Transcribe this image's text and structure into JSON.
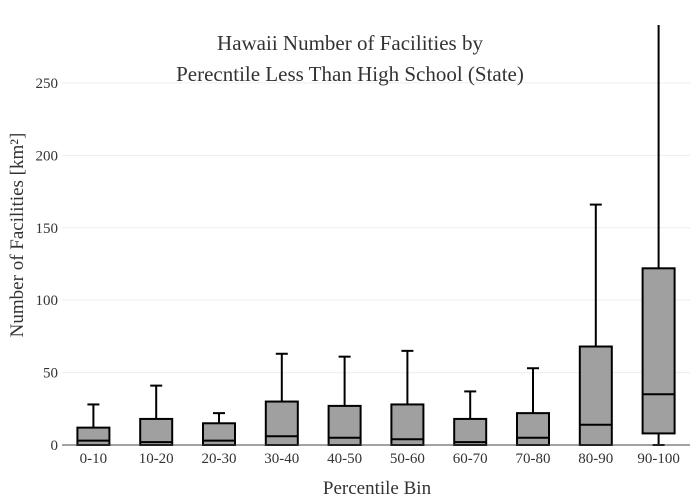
{
  "chart_data": {
    "type": "box",
    "title_line1": "Hawaii Number of Facilities by",
    "title_line2": "Perecntile Less Than High School (State)",
    "xlabel": "Percentile Bin",
    "ylabel": "Number of Facilities  [km²]",
    "ylim": [
      0,
      290
    ],
    "yticks": [
      0,
      50,
      100,
      150,
      200,
      250
    ],
    "grid": true,
    "categories": [
      "0-10",
      "10-20",
      "20-30",
      "30-40",
      "40-50",
      "50-60",
      "60-70",
      "70-80",
      "80-90",
      "90-100"
    ],
    "boxes": [
      {
        "min": 0,
        "q1": 0,
        "median": 3,
        "q3": 12,
        "max": 28
      },
      {
        "min": 0,
        "q1": 0,
        "median": 2,
        "q3": 18,
        "max": 41
      },
      {
        "min": 0,
        "q1": 0,
        "median": 3,
        "q3": 15,
        "max": 22
      },
      {
        "min": 0,
        "q1": 0,
        "median": 6,
        "q3": 30,
        "max": 63
      },
      {
        "min": 0,
        "q1": 0,
        "median": 5,
        "q3": 27,
        "max": 61
      },
      {
        "min": 0,
        "q1": 0,
        "median": 4,
        "q3": 28,
        "max": 65
      },
      {
        "min": 0,
        "q1": 0,
        "median": 2,
        "q3": 18,
        "max": 37
      },
      {
        "min": 0,
        "q1": 0,
        "median": 5,
        "q3": 22,
        "max": 53
      },
      {
        "min": 0,
        "q1": 0,
        "median": 14,
        "q3": 68,
        "max": 166
      },
      {
        "min": 0,
        "q1": 8,
        "median": 35,
        "q3": 122,
        "max": 290
      }
    ],
    "box_color": "#a0a0a0",
    "line_color": "#000000"
  }
}
